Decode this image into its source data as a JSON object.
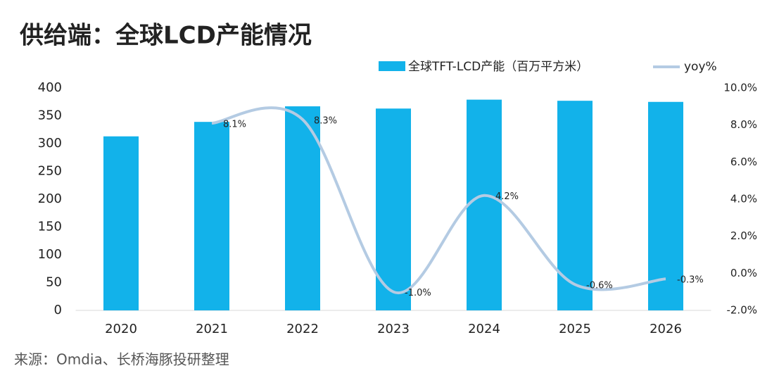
{
  "chart_data": {
    "type": "bar_line",
    "title": "供给端：全球LCD产能情况",
    "source": "来源：Omdia、长桥海豚投研整理",
    "categories": [
      "2020",
      "2021",
      "2022",
      "2023",
      "2024",
      "2025",
      "2026"
    ],
    "series": [
      {
        "name": "全球TFT-LCD产能（百万平方米）",
        "type": "bar",
        "color": "#12b2ea",
        "values": [
          313,
          339,
          367,
          363,
          379,
          377,
          375
        ]
      },
      {
        "name": "yoy%",
        "type": "line",
        "axis": "y2",
        "color": "#b4cbe3",
        "values": [
          null,
          8.1,
          8.3,
          -1.0,
          4.2,
          -0.6,
          -0.3
        ],
        "value_labels": [
          null,
          "8.1%",
          "8.3%",
          "-1.0%",
          "4.2%",
          "-0.6%",
          "-0.3%"
        ]
      }
    ],
    "ylim": [
      0,
      400
    ],
    "yticks": [
      0,
      50,
      100,
      150,
      200,
      250,
      300,
      350,
      400
    ],
    "y2lim": [
      -2,
      10
    ],
    "y2ticks": [
      {
        "value": -2,
        "label": "-2.0%"
      },
      {
        "value": 0,
        "label": "0.0%"
      },
      {
        "value": 2,
        "label": "2.0%"
      },
      {
        "value": 4,
        "label": "4.0%"
      },
      {
        "value": 6,
        "label": "6.0%"
      },
      {
        "value": 8,
        "label": "8.0%"
      },
      {
        "value": 10,
        "label": "10.0%"
      }
    ]
  }
}
